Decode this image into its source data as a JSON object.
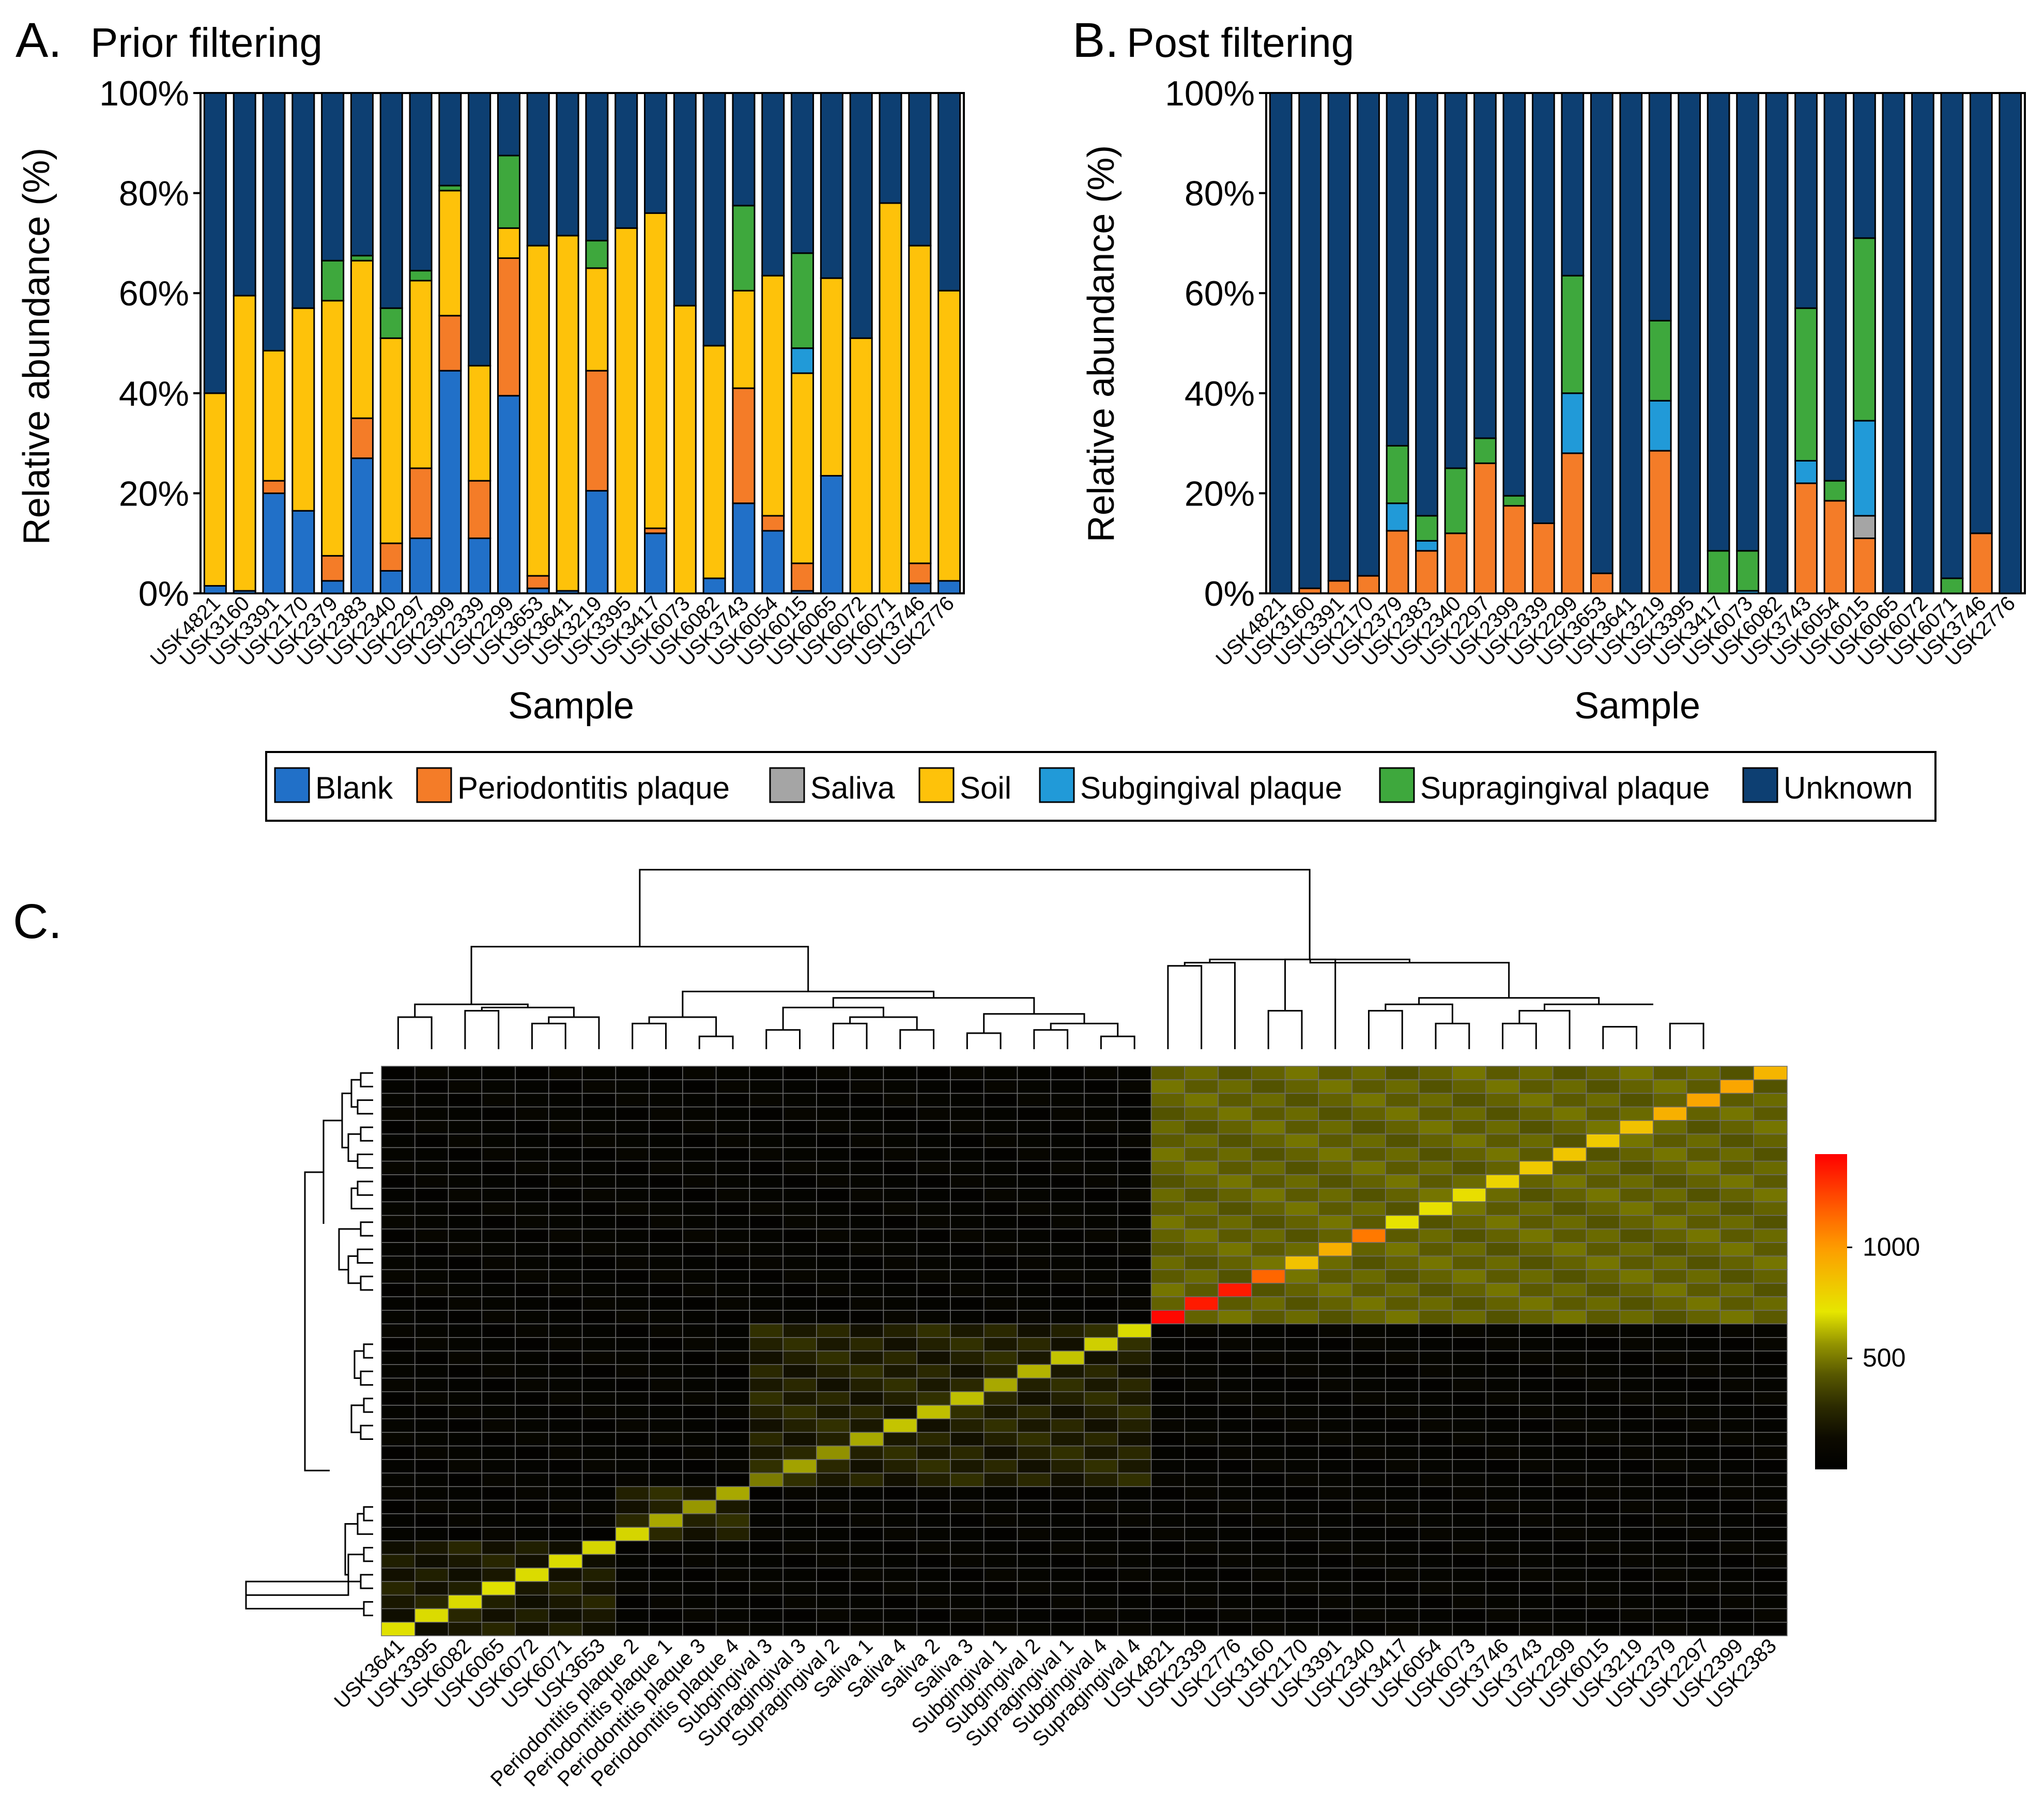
{
  "panels": {
    "a": {
      "letter": "A.",
      "title": "Prior filtering"
    },
    "b": {
      "letter": "B.",
      "title": "Post filtering"
    },
    "c": {
      "letter": "C."
    }
  },
  "axis": {
    "ylabel": "Relative abundance (%)",
    "xlabel": "Sample",
    "yticks": [
      "0%",
      "20%",
      "40%",
      "60%",
      "80%",
      "100%"
    ]
  },
  "legend": {
    "items": [
      {
        "label": "Blank",
        "color": "#2170c8"
      },
      {
        "label": "Periodontitis plaque",
        "color": "#f47c28"
      },
      {
        "label": "Saliva",
        "color": "#a5a5a5"
      },
      {
        "label": "Soil",
        "color": "#fec20a"
      },
      {
        "label": "Subgingival plaque",
        "color": "#219ad8"
      },
      {
        "label": "Supragingival plaque",
        "color": "#3ea83d"
      },
      {
        "label": "Unknown",
        "color": "#0d3f72"
      }
    ]
  },
  "heatmap_scale": {
    "ticks": [
      "500",
      "1000"
    ],
    "tick_values": [
      500,
      1000
    ],
    "min": 0,
    "max": 1420
  },
  "chart_data": [
    {
      "type": "bar",
      "id": "A",
      "title": "Prior filtering",
      "xlabel": "Sample",
      "ylabel": "Relative abundance (%)",
      "ylim": [
        0,
        100
      ],
      "stacked": true,
      "categories": [
        "USK4821",
        "USK3160",
        "USK3391",
        "USK2170",
        "USK2379",
        "USK2383",
        "USK2340",
        "USK2297",
        "USK2399",
        "USK2339",
        "USK2299",
        "USK3653",
        "USK3641",
        "USK3219",
        "USK3395",
        "USK3417",
        "USK6073",
        "USK6082",
        "USK3743",
        "USK6054",
        "USK6015",
        "USK6065",
        "USK6072",
        "USK6071",
        "USK3746",
        "USK2776"
      ],
      "series": [
        {
          "name": "Blank",
          "values": [
            1.5,
            0.5,
            20,
            16.5,
            2.5,
            27,
            4.5,
            11,
            44.5,
            11,
            39.5,
            1,
            0.5,
            20.5,
            0,
            12,
            0,
            3,
            18,
            12.5,
            0.5,
            23.5,
            0,
            0,
            2,
            2.5
          ]
        },
        {
          "name": "Periodontitis plaque",
          "values": [
            0,
            0,
            2.5,
            0,
            5,
            8,
            5.5,
            14,
            11,
            11.5,
            27.5,
            2.5,
            0,
            24,
            0,
            1,
            0,
            0,
            23,
            3,
            5.5,
            0,
            0,
            0,
            4,
            0
          ]
        },
        {
          "name": "Saliva",
          "values": [
            0,
            0,
            0,
            0,
            0,
            0,
            0,
            0,
            0,
            0,
            0,
            0,
            0,
            0,
            0,
            0,
            0,
            0,
            0,
            0,
            0,
            0,
            0,
            0,
            0,
            0
          ]
        },
        {
          "name": "Soil",
          "values": [
            38.5,
            59,
            26,
            40.5,
            51,
            31.5,
            41,
            37.5,
            25,
            23,
            6,
            66,
            71,
            20.5,
            73,
            63,
            57.5,
            46.5,
            19.5,
            48,
            38,
            39.5,
            51,
            78,
            63.5,
            58
          ]
        },
        {
          "name": "Subgingival plaque",
          "values": [
            0,
            0,
            0,
            0,
            0,
            0,
            0,
            0,
            0,
            0,
            0,
            0,
            0,
            0,
            0,
            0,
            0,
            0,
            0,
            0,
            5,
            0,
            0,
            0,
            0,
            0
          ]
        },
        {
          "name": "Supragingival plaque",
          "values": [
            0,
            0,
            0,
            0,
            8,
            1,
            6,
            2,
            1,
            0,
            14.5,
            0,
            0,
            5.5,
            0,
            0,
            0,
            0,
            17,
            0,
            19,
            0,
            0,
            0,
            0,
            0
          ]
        },
        {
          "name": "Unknown",
          "values": [
            60,
            40.5,
            51.5,
            43,
            33.5,
            32.5,
            43,
            35.5,
            18.5,
            54.5,
            12.5,
            30.5,
            28.5,
            29.5,
            27,
            24,
            42.5,
            50.5,
            22.5,
            36.5,
            32,
            37,
            49,
            22,
            30.5,
            39.5
          ]
        }
      ]
    },
    {
      "type": "bar",
      "id": "B",
      "title": "Post filtering",
      "xlabel": "Sample",
      "ylabel": "Relative abundance (%)",
      "ylim": [
        0,
        100
      ],
      "stacked": true,
      "categories": [
        "USK4821",
        "USK3160",
        "USK3391",
        "USK2170",
        "USK2379",
        "USK2383",
        "USK2340",
        "USK2297",
        "USK2399",
        "USK2339",
        "USK2299",
        "USK3653",
        "USK3641",
        "USK3219",
        "USK3395",
        "USK3417",
        "USK6073",
        "USK6082",
        "USK3743",
        "USK6054",
        "USK6015",
        "USK6065",
        "USK6072",
        "USK6071",
        "USK3746",
        "USK2776"
      ],
      "series": [
        {
          "name": "Blank",
          "values": [
            0,
            0,
            0,
            0,
            0,
            0,
            0,
            0,
            0,
            0,
            0,
            0,
            0,
            0,
            0,
            0,
            0,
            0,
            0,
            0,
            0,
            0,
            0,
            0,
            0,
            0
          ]
        },
        {
          "name": "Periodontitis plaque",
          "values": [
            0,
            1,
            2.5,
            3.5,
            12.5,
            8.5,
            12,
            26,
            17.5,
            14,
            28,
            4,
            0,
            28.5,
            0,
            0,
            0,
            0,
            22,
            18.5,
            11,
            0,
            0,
            0,
            12,
            0
          ]
        },
        {
          "name": "Saliva",
          "values": [
            0,
            0,
            0,
            0,
            0,
            0,
            0,
            0,
            0,
            0,
            0,
            0,
            0,
            0,
            0,
            0,
            0,
            0,
            0,
            0,
            4.5,
            0,
            0,
            0,
            0,
            0
          ]
        },
        {
          "name": "Soil",
          "values": [
            0,
            0,
            0,
            0,
            0,
            0,
            0,
            0,
            0,
            0,
            0,
            0,
            0,
            0,
            0,
            0,
            0,
            0,
            0,
            0,
            0,
            0,
            0,
            0,
            0,
            0
          ]
        },
        {
          "name": "Subgingival plaque",
          "values": [
            0,
            0,
            0,
            0,
            5.5,
            2,
            0,
            0,
            0,
            0,
            12,
            0,
            0,
            10,
            0,
            0,
            0.5,
            0,
            4.5,
            0,
            19,
            0,
            0,
            0,
            0,
            0
          ]
        },
        {
          "name": "Supragingival plaque",
          "values": [
            0,
            0,
            0,
            0,
            11.5,
            5,
            13,
            5,
            2,
            0,
            23.5,
            0,
            0,
            16,
            0,
            8.5,
            8,
            0,
            30.5,
            4,
            36.5,
            0,
            0,
            3,
            0,
            0
          ]
        },
        {
          "name": "Unknown",
          "values": [
            100,
            99,
            97.5,
            96.5,
            70.5,
            84.5,
            75,
            69,
            80.5,
            86,
            36.5,
            96,
            100,
            45.5,
            100,
            91.5,
            91.5,
            100,
            43,
            77.5,
            29,
            100,
            100,
            97,
            88,
            100
          ]
        }
      ]
    },
    {
      "type": "heatmap",
      "id": "C",
      "column_labels": [
        "USK3641",
        "USK3395",
        "USK6082",
        "USK6065",
        "USK6072",
        "USK6071",
        "USK3653",
        "Periodontitis plaque 2",
        "Periodontitis plaque 1",
        "Periodontitis plaque 3",
        "Periodontitis plaque 4",
        "Subgingival 3",
        "Supragingival 3",
        "Supragingival 2",
        "Saliva 1",
        "Saliva 4",
        "Saliva 2",
        "Saliva 3",
        "Subgingival 1",
        "Subgingival 2",
        "Supragingival 1",
        "Subgingival 4",
        "Supragingival 4",
        "USK4821",
        "USK2339",
        "USK2776",
        "USK3160",
        "USK2170",
        "USK3391",
        "USK2340",
        "USK3417",
        "USK6054",
        "USK6073",
        "USK3746",
        "USK3743",
        "USK2299",
        "USK6015",
        "USK3219",
        "USK2379",
        "USK2297",
        "USK2399",
        "USK2383"
      ],
      "diagonal_values": [
        700,
        690,
        690,
        700,
        690,
        690,
        680,
        680,
        600,
        570,
        600,
        520,
        590,
        560,
        600,
        650,
        640,
        640,
        600,
        620,
        650,
        670,
        690,
        1400,
        1350,
        1350,
        1150,
        850,
        920,
        1100,
        720,
        730,
        740,
        780,
        820,
        840,
        820,
        850,
        920,
        960,
        960,
        900
      ],
      "colorbar": {
        "min": 0,
        "max": 1420,
        "ticks": [
          500,
          1000
        ]
      },
      "groups": [
        {
          "start": 0,
          "end": 6,
          "value": 170
        },
        {
          "start": 7,
          "end": 10,
          "value": 200
        },
        {
          "start": 11,
          "end": 22,
          "value": 200
        },
        {
          "start": 23,
          "end": 41,
          "value": 410
        }
      ],
      "background_value": 30
    }
  ]
}
